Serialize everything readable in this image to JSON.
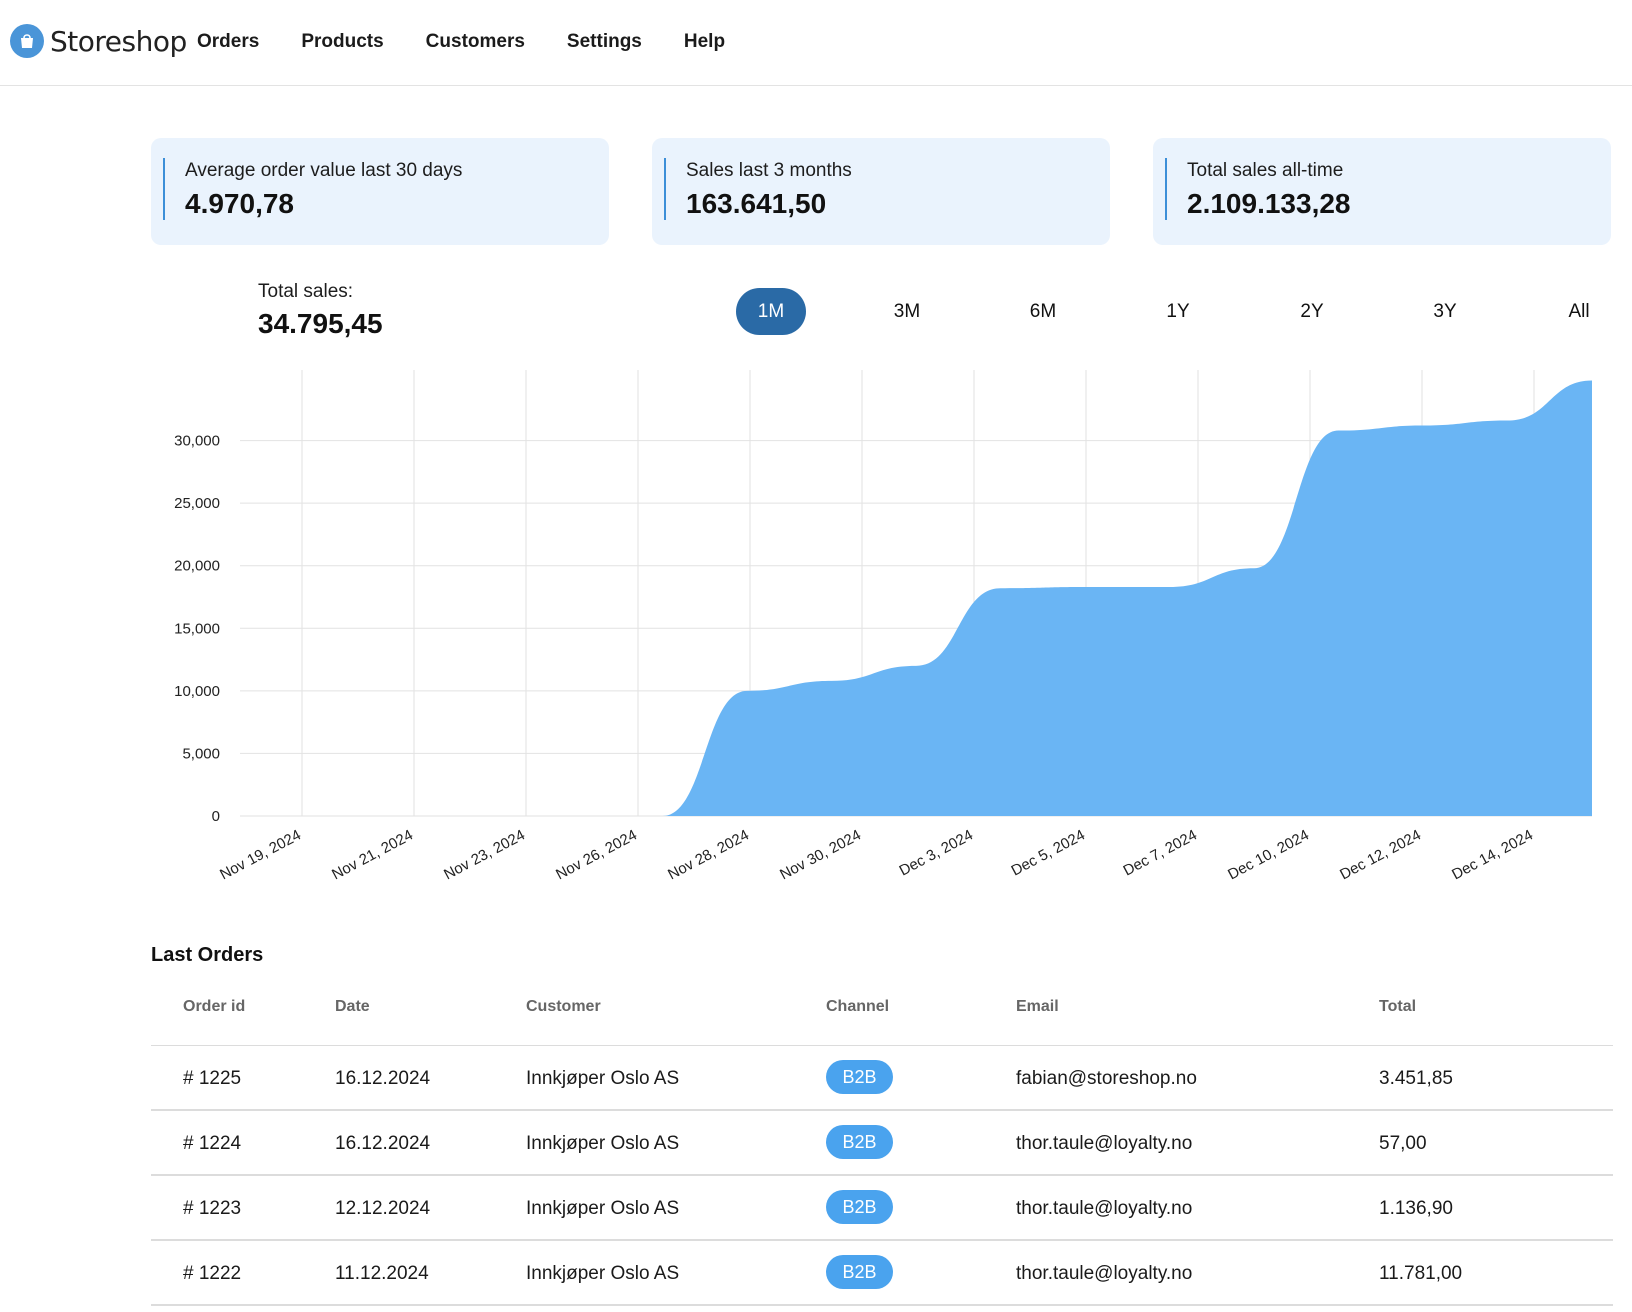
{
  "app": {
    "name": "Storeshop"
  },
  "nav": [
    "Orders",
    "Products",
    "Customers",
    "Settings",
    "Help"
  ],
  "kpis": [
    {
      "label": "Average order value last 30 days",
      "value": "4.970,78"
    },
    {
      "label": "Sales last 3 months",
      "value": "163.641,50"
    },
    {
      "label": "Total sales all-time",
      "value": "2.109.133,28"
    }
  ],
  "total": {
    "label": "Total sales:",
    "value": "34.795,45"
  },
  "ranges": [
    "1M",
    "3M",
    "6M",
    "1Y",
    "2Y",
    "3Y",
    "All"
  ],
  "active_range": "1M",
  "colors": {
    "accent": "#2a6aa6",
    "area": "#6ab5f4",
    "card_bg": "#eaf3fd",
    "badge": "#4aa3ee"
  },
  "chart_data": {
    "type": "area",
    "title": "",
    "xlabel": "",
    "ylabel": "",
    "ylim": [
      0,
      35000
    ],
    "y_ticks": [
      "0",
      "5,000",
      "10,000",
      "15,000",
      "20,000",
      "25,000",
      "30,000"
    ],
    "x_tick_labels": [
      "Nov 19, 2024",
      "Nov 21, 2024",
      "Nov 23, 2024",
      "Nov 26, 2024",
      "Nov 28, 2024",
      "Nov 30, 2024",
      "Dec 3, 2024",
      "Dec 5, 2024",
      "Dec 7, 2024",
      "Dec 10, 2024",
      "Dec 12, 2024",
      "Dec 14, 2024"
    ],
    "grid": true,
    "series": [
      {
        "values": [
          0,
          0,
          0,
          0,
          0,
          0,
          10000,
          10800,
          12000,
          18200,
          18300,
          18300,
          19800,
          30800,
          31200,
          31600,
          34800
        ]
      }
    ]
  },
  "orders": {
    "title": "Last Orders",
    "columns": [
      "Order id",
      "Date",
      "Customer",
      "Channel",
      "Email",
      "Total"
    ],
    "rows": [
      {
        "id": "# 1225",
        "date": "16.12.2024",
        "customer": "Innkjøper Oslo AS",
        "channel": "B2B",
        "email": "fabian@storeshop.no",
        "total": "3.451,85"
      },
      {
        "id": "# 1224",
        "date": "16.12.2024",
        "customer": "Innkjøper Oslo AS",
        "channel": "B2B",
        "email": "thor.taule@loyalty.no",
        "total": "57,00"
      },
      {
        "id": "# 1223",
        "date": "12.12.2024",
        "customer": "Innkjøper Oslo AS",
        "channel": "B2B",
        "email": "thor.taule@loyalty.no",
        "total": "1.136,90"
      },
      {
        "id": "# 1222",
        "date": "11.12.2024",
        "customer": "Innkjøper Oslo AS",
        "channel": "B2B",
        "email": "thor.taule@loyalty.no",
        "total": "11.781,00"
      }
    ]
  }
}
